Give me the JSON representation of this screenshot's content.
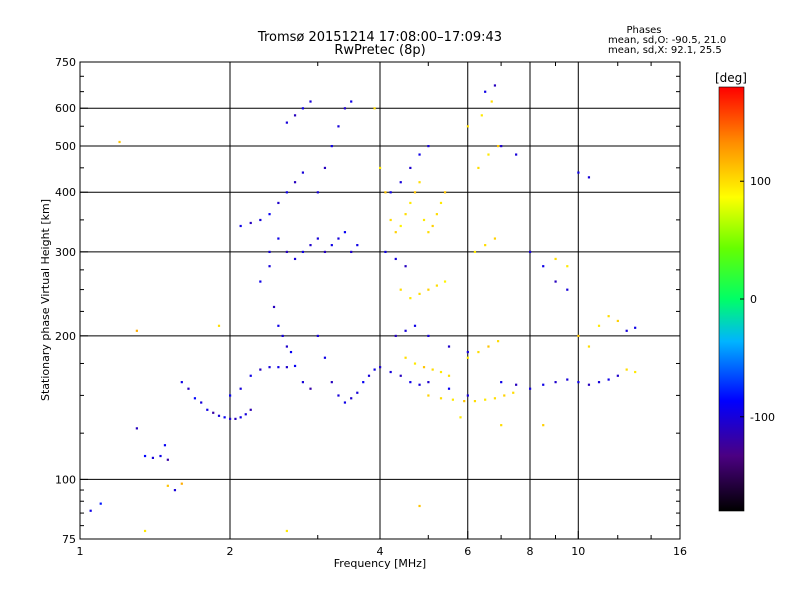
{
  "chart_data": {
    "type": "scatter",
    "title": "Tromsø 20151214 17:08:00–17:09:43",
    "subtitle": "RwPretec (8p)",
    "xlabel": "Frequency [MHz]",
    "ylabel": "Stationary phase Virtual Height [km]",
    "x_scale": "log",
    "y_scale": "log",
    "xlim": [
      1,
      16
    ],
    "ylim": [
      75,
      750
    ],
    "x_ticks": [
      1,
      2,
      4,
      6,
      8,
      10,
      16
    ],
    "x_tick_labels": [
      "1",
      "2",
      "4",
      "6",
      "8",
      "10",
      "16"
    ],
    "x_minor_ticks": [
      3,
      5,
      7,
      9,
      12,
      14
    ],
    "y_ticks": [
      75,
      100,
      200,
      300,
      400,
      500,
      600,
      750
    ],
    "y_tick_labels": [
      "75",
      "100",
      "200",
      "300",
      "400",
      "500",
      "600",
      "750"
    ],
    "y_minor_ticks": [
      80,
      85,
      90,
      95,
      125,
      150,
      175,
      225,
      250,
      275,
      350,
      450,
      550,
      650,
      700
    ],
    "grid": true,
    "colorbar": {
      "label": "[deg]",
      "range": [
        -180,
        180
      ],
      "ticks": [
        100,
        0,
        -100
      ],
      "tick_labels": [
        "100",
        "0",
        "-100"
      ]
    },
    "stats": {
      "heading": "Phases",
      "line_o": "mean, sd,O: -90.5, 21.0",
      "line_x": "mean, sd,X:  92.1, 25.5"
    },
    "series": [
      {
        "phase_group": "O",
        "points": [
          [
            1.05,
            86,
            -95
          ],
          [
            1.1,
            89,
            -80
          ],
          [
            1.3,
            128,
            -110
          ],
          [
            1.35,
            112,
            -85
          ],
          [
            1.4,
            111,
            -100
          ],
          [
            1.45,
            112,
            -95
          ],
          [
            1.5,
            110,
            -120
          ],
          [
            1.48,
            118,
            -90
          ],
          [
            1.55,
            95,
            -100
          ],
          [
            1.6,
            160,
            -95
          ],
          [
            1.65,
            155,
            -110
          ],
          [
            1.7,
            148,
            -85
          ],
          [
            1.75,
            145,
            -100
          ],
          [
            1.8,
            140,
            -95
          ],
          [
            1.85,
            138,
            -120
          ],
          [
            1.9,
            136,
            -100
          ],
          [
            1.95,
            135,
            -90
          ],
          [
            2.0,
            134,
            -105
          ],
          [
            2.05,
            134,
            -110
          ],
          [
            2.1,
            135,
            -95
          ],
          [
            2.15,
            137,
            -100
          ],
          [
            2.2,
            140,
            -115
          ],
          [
            2.0,
            150,
            -90
          ],
          [
            2.1,
            155,
            -100
          ],
          [
            2.2,
            165,
            -95
          ],
          [
            2.3,
            170,
            -110
          ],
          [
            2.4,
            172,
            -100
          ],
          [
            2.5,
            172,
            -95
          ],
          [
            2.6,
            172,
            -105
          ],
          [
            2.7,
            173,
            -90
          ],
          [
            2.8,
            160,
            -100
          ],
          [
            2.9,
            155,
            -120
          ],
          [
            2.1,
            340,
            -95
          ],
          [
            2.2,
            345,
            -110
          ],
          [
            2.3,
            350,
            -100
          ],
          [
            2.4,
            360,
            -90
          ],
          [
            2.5,
            380,
            -105
          ],
          [
            2.6,
            400,
            -95
          ],
          [
            2.7,
            420,
            -110
          ],
          [
            2.8,
            440,
            -100
          ],
          [
            2.3,
            260,
            -95
          ],
          [
            2.4,
            280,
            -100
          ],
          [
            2.45,
            230,
            -110
          ],
          [
            2.5,
            210,
            -95
          ],
          [
            2.55,
            200,
            -100
          ],
          [
            2.6,
            190,
            -105
          ],
          [
            2.65,
            185,
            -90
          ],
          [
            2.4,
            300,
            -100
          ],
          [
            2.5,
            320,
            -95
          ],
          [
            2.6,
            300,
            -110
          ],
          [
            2.7,
            290,
            -100
          ],
          [
            2.8,
            300,
            -95
          ],
          [
            2.9,
            310,
            -105
          ],
          [
            3.0,
            320,
            -100
          ],
          [
            3.1,
            300,
            -110
          ],
          [
            3.2,
            310,
            -95
          ],
          [
            3.3,
            320,
            -100
          ],
          [
            3.4,
            330,
            -90
          ],
          [
            3.5,
            300,
            -105
          ],
          [
            3.6,
            310,
            -95
          ],
          [
            3.0,
            400,
            -100
          ],
          [
            3.1,
            450,
            -110
          ],
          [
            3.2,
            500,
            -95
          ],
          [
            3.3,
            550,
            -100
          ],
          [
            3.4,
            600,
            -105
          ],
          [
            3.5,
            620,
            -95
          ],
          [
            2.6,
            560,
            -100
          ],
          [
            2.7,
            580,
            -110
          ],
          [
            2.8,
            600,
            -95
          ],
          [
            2.9,
            620,
            -100
          ],
          [
            3.0,
            200,
            -100
          ],
          [
            3.1,
            180,
            -95
          ],
          [
            3.2,
            160,
            -110
          ],
          [
            3.3,
            150,
            -100
          ],
          [
            3.4,
            145,
            -95
          ],
          [
            3.5,
            148,
            -105
          ],
          [
            3.6,
            152,
            -100
          ],
          [
            3.7,
            160,
            -90
          ],
          [
            3.8,
            165,
            -100
          ],
          [
            3.9,
            170,
            -95
          ],
          [
            4.0,
            172,
            -105
          ],
          [
            4.2,
            168,
            -100
          ],
          [
            4.4,
            165,
            -110
          ],
          [
            4.6,
            160,
            -95
          ],
          [
            4.8,
            158,
            -100
          ],
          [
            5.0,
            160,
            -105
          ],
          [
            5.5,
            155,
            -90
          ],
          [
            6.0,
            150,
            -100
          ],
          [
            4.1,
            300,
            -95
          ],
          [
            4.3,
            290,
            -100
          ],
          [
            4.5,
            280,
            -110
          ],
          [
            4.2,
            400,
            -95
          ],
          [
            4.4,
            420,
            -100
          ],
          [
            4.6,
            450,
            -105
          ],
          [
            4.8,
            480,
            -95
          ],
          [
            5.0,
            500,
            -100
          ],
          [
            4.3,
            200,
            -110
          ],
          [
            4.5,
            205,
            -100
          ],
          [
            4.7,
            210,
            -95
          ],
          [
            5.0,
            200,
            -100
          ],
          [
            5.5,
            190,
            -105
          ],
          [
            6.0,
            185,
            -100
          ],
          [
            7.0,
            160,
            -95
          ],
          [
            7.5,
            158,
            -110
          ],
          [
            8.0,
            155,
            -100
          ],
          [
            8.5,
            158,
            -95
          ],
          [
            9.0,
            160,
            -105
          ],
          [
            9.5,
            162,
            -100
          ],
          [
            10.0,
            160,
            -95
          ],
          [
            10.5,
            158,
            -110
          ],
          [
            11.0,
            160,
            -100
          ],
          [
            11.5,
            162,
            -95
          ],
          [
            12.0,
            165,
            -105
          ],
          [
            8.0,
            300,
            -100
          ],
          [
            8.5,
            280,
            -95
          ],
          [
            9.0,
            260,
            -110
          ],
          [
            9.5,
            250,
            -100
          ],
          [
            10.0,
            440,
            -95
          ],
          [
            10.5,
            430,
            -100
          ],
          [
            7.0,
            500,
            -105
          ],
          [
            7.5,
            480,
            -100
          ],
          [
            6.5,
            650,
            -95
          ],
          [
            6.8,
            670,
            -110
          ],
          [
            12.5,
            205,
            -100
          ],
          [
            13.0,
            208,
            -95
          ]
        ]
      },
      {
        "phase_group": "X",
        "points": [
          [
            1.2,
            510,
            110
          ],
          [
            1.3,
            205,
            120
          ],
          [
            1.35,
            78,
            95
          ],
          [
            1.5,
            97,
            110
          ],
          [
            1.6,
            98,
            120
          ],
          [
            1.9,
            210,
            100
          ],
          [
            2.6,
            78,
            95
          ],
          [
            3.9,
            600,
            100
          ],
          [
            4.0,
            450,
            95
          ],
          [
            4.1,
            400,
            110
          ],
          [
            4.2,
            350,
            100
          ],
          [
            4.3,
            330,
            105
          ],
          [
            4.4,
            340,
            90
          ],
          [
            4.5,
            360,
            100
          ],
          [
            4.6,
            380,
            95
          ],
          [
            4.7,
            400,
            110
          ],
          [
            4.8,
            420,
            100
          ],
          [
            4.9,
            350,
            95
          ],
          [
            5.0,
            330,
            100
          ],
          [
            5.1,
            340,
            105
          ],
          [
            5.2,
            360,
            100
          ],
          [
            5.3,
            380,
            95
          ],
          [
            5.4,
            400,
            110
          ],
          [
            4.4,
            250,
            100
          ],
          [
            4.6,
            240,
            95
          ],
          [
            4.8,
            245,
            100
          ],
          [
            5.0,
            250,
            105
          ],
          [
            5.2,
            255,
            100
          ],
          [
            5.4,
            260,
            90
          ],
          [
            4.5,
            180,
            100
          ],
          [
            4.7,
            175,
            95
          ],
          [
            4.9,
            172,
            110
          ],
          [
            5.1,
            170,
            100
          ],
          [
            5.3,
            168,
            95
          ],
          [
            5.5,
            165,
            100
          ],
          [
            5.0,
            150,
            105
          ],
          [
            5.3,
            148,
            100
          ],
          [
            5.6,
            147,
            95
          ],
          [
            5.9,
            146,
            110
          ],
          [
            6.2,
            146,
            100
          ],
          [
            6.5,
            147,
            95
          ],
          [
            6.8,
            148,
            100
          ],
          [
            7.1,
            150,
            105
          ],
          [
            7.4,
            152,
            100
          ],
          [
            6.0,
            180,
            95
          ],
          [
            6.3,
            185,
            100
          ],
          [
            6.6,
            190,
            110
          ],
          [
            6.9,
            195,
            100
          ],
          [
            6.2,
            300,
            95
          ],
          [
            6.5,
            310,
            100
          ],
          [
            6.8,
            320,
            105
          ],
          [
            6.3,
            450,
            100
          ],
          [
            6.6,
            480,
            95
          ],
          [
            6.9,
            500,
            110
          ],
          [
            6.0,
            550,
            100
          ],
          [
            6.4,
            580,
            95
          ],
          [
            6.7,
            620,
            100
          ],
          [
            8.5,
            130,
            105
          ],
          [
            9.0,
            290,
            100
          ],
          [
            9.5,
            280,
            95
          ],
          [
            10.0,
            200,
            110
          ],
          [
            10.5,
            190,
            100
          ],
          [
            11.0,
            210,
            95
          ],
          [
            11.5,
            220,
            100
          ],
          [
            12.0,
            215,
            105
          ],
          [
            12.5,
            170,
            100
          ],
          [
            13.0,
            168,
            95
          ],
          [
            4.8,
            88,
            110
          ],
          [
            7.0,
            130,
            100
          ],
          [
            5.8,
            135,
            95
          ]
        ]
      }
    ]
  }
}
